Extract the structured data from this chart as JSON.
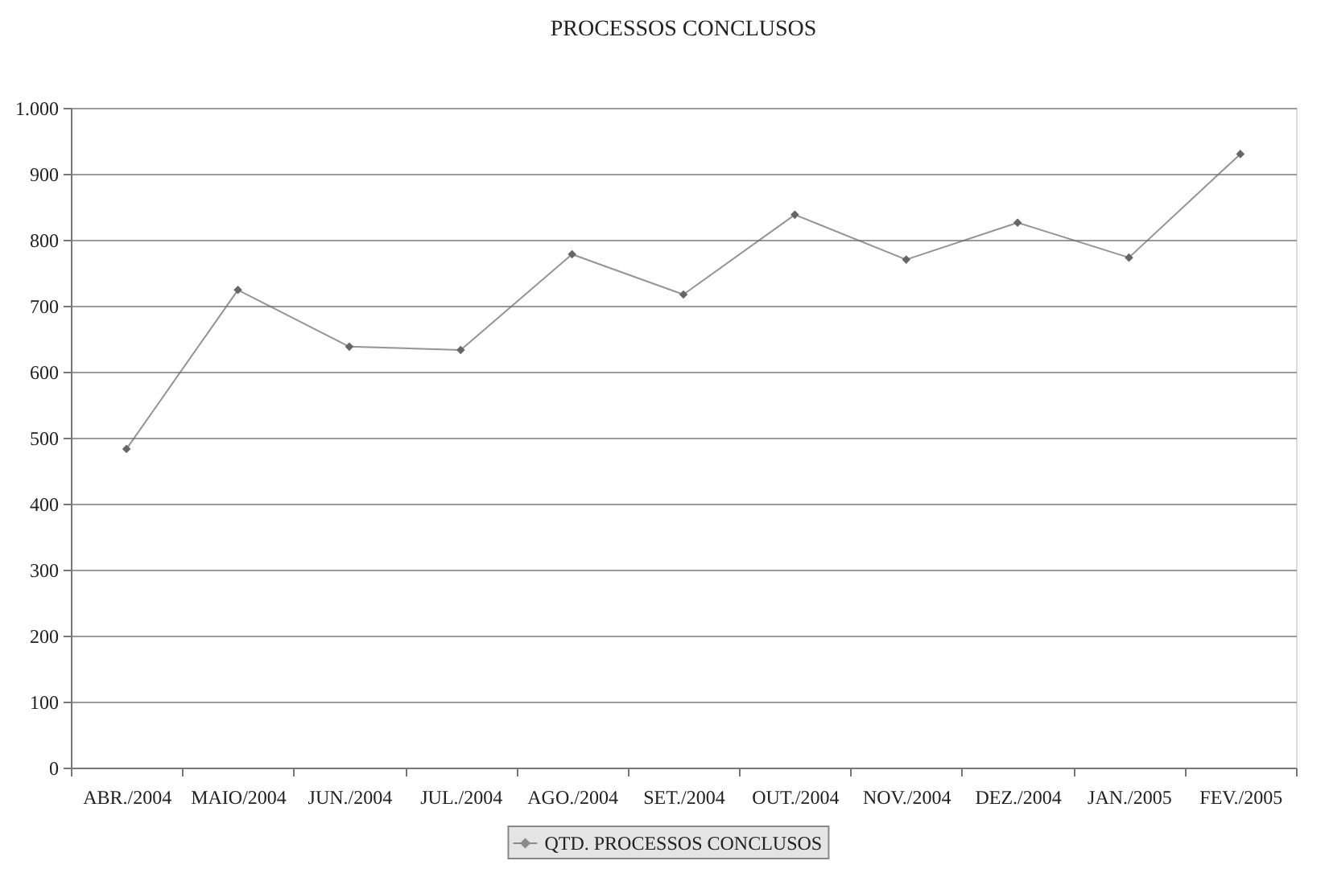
{
  "chart_data": {
    "type": "line",
    "title": "PROCESSOS CONCLUSOS",
    "categories": [
      "ABR./2004",
      "MAIO/2004",
      "JUN./2004",
      "JUL./2004",
      "AGO./2004",
      "SET./2004",
      "OUT./2004",
      "NOV./2004",
      "DEZ./2004",
      "JAN./2005",
      "FEV./2005"
    ],
    "series": [
      {
        "name": "QTD. PROCESSOS CONCLUSOS",
        "color": "#666666",
        "values": [
          483,
          724,
          638,
          633,
          778,
          717,
          838,
          770,
          826,
          773,
          930
        ]
      }
    ],
    "ylim": [
      0,
      1000
    ],
    "yticks": [
      0,
      100,
      200,
      300,
      400,
      500,
      600,
      700,
      800,
      900,
      {
        "value": 1000,
        "label": "1.000"
      }
    ],
    "grid": "y",
    "legend": "bottom",
    "marker": "diamond",
    "line_style": "solid"
  }
}
